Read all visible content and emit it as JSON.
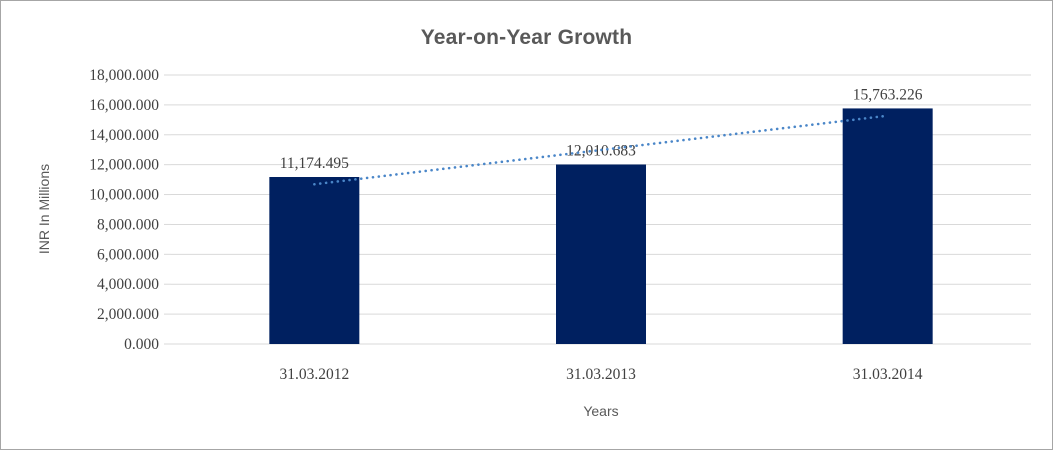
{
  "window": {
    "background": "#ffffff",
    "border_color": "#a6a6a6"
  },
  "chart_data": {
    "type": "bar",
    "title": "Year-on-Year Growth",
    "xlabel": "Years",
    "ylabel": "INR In Millions",
    "categories": [
      "31.03.2012",
      "31.03.2013",
      "31.03.2014"
    ],
    "values": [
      11174.495,
      12010.683,
      15763.226
    ],
    "value_labels": [
      "11,174.495",
      "12,010.683",
      "15,763.226"
    ],
    "ylim": [
      0,
      18000
    ],
    "ytick_step": 2000,
    "ytick_labels": [
      "0.000",
      "2,000.000",
      "4,000.000",
      "6,000.000",
      "8,000.000",
      "10,000.000",
      "12,000.000",
      "14,000.000",
      "16,000.000",
      "18,000.000"
    ],
    "grid": "horizontal",
    "legend": "none",
    "trendline": {
      "type": "linear",
      "style": "dotted"
    },
    "colors": {
      "bar": "#002060",
      "trendline": "#4a86c8",
      "gridline": "#d9d9d9",
      "axis_line": "#d9d9d9",
      "tick_label": "#404040",
      "title": "#595959",
      "axis_title": "#595959"
    }
  }
}
